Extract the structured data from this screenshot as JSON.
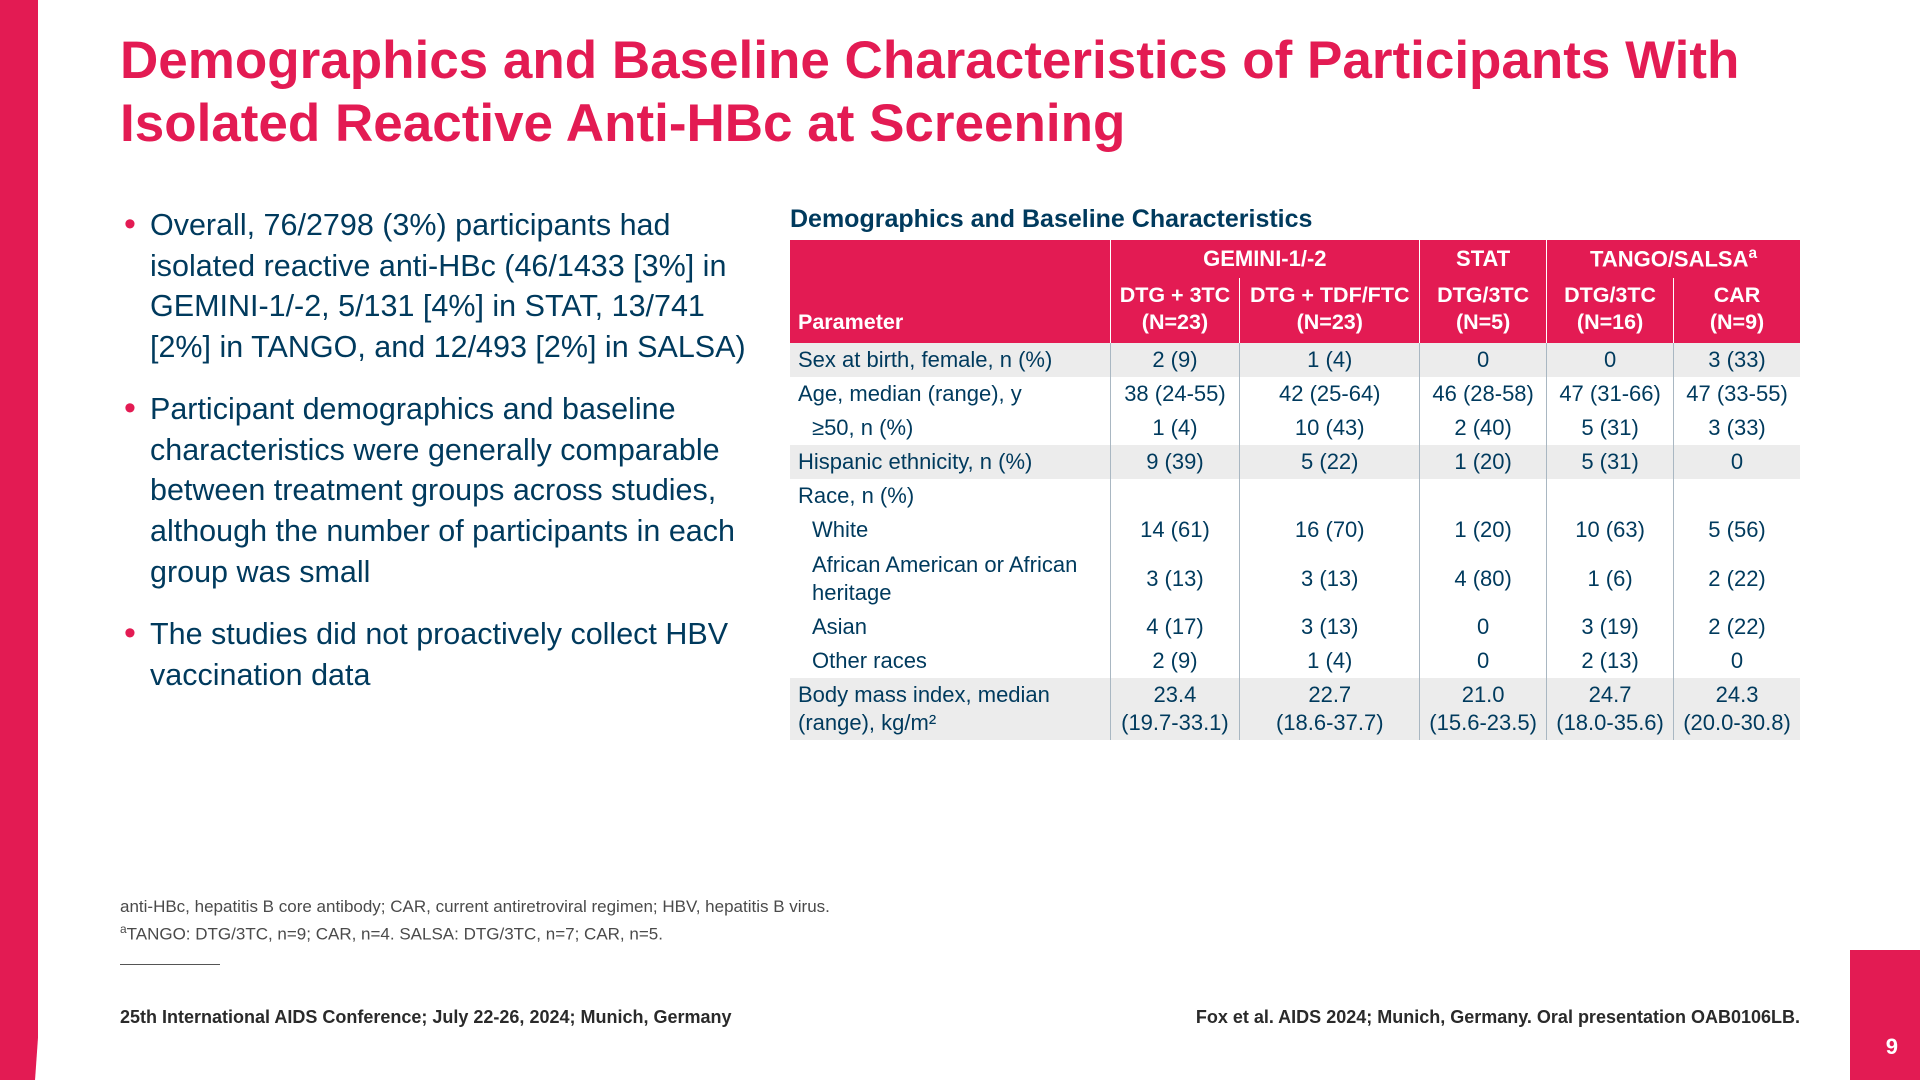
{
  "colors": {
    "accent": "#e31b53",
    "text": "#003a5d",
    "shade": "#ececec"
  },
  "title": "Demographics and Baseline Characteristics of Participants With Isolated Reactive Anti-HBc at Screening",
  "bullets": [
    "Overall, 76/2798 (3%) participants had isolated reactive anti-HBc (46/1433 [3%] in GEMINI-1/-2, 5/131 [4%] in STAT, 13/741 [2%] in TANGO, and 12/493 [2%] in SALSA)",
    "Participant demographics and baseline characteristics were generally comparable between treatment groups across studies, although the number of participants in each group was small",
    "The studies did not proactively collect HBV vaccination data"
  ],
  "table": {
    "title": "Demographics and Baseline Characteristics",
    "group_headers": [
      {
        "label": "",
        "span": 1
      },
      {
        "label": "GEMINI-1/-2",
        "span": 2
      },
      {
        "label": "STAT",
        "span": 1
      },
      {
        "label": "TANGO/SALSAa",
        "span": 2,
        "sup": "a",
        "base": "TANGO/SALSA"
      }
    ],
    "col_headers": [
      "Parameter",
      "DTG + 3TC\n(N=23)",
      "DTG + TDF/FTC\n(N=23)",
      "DTG/3TC\n(N=5)",
      "DTG/3TC\n(N=16)",
      "CAR\n(N=9)"
    ],
    "rows": [
      {
        "shade": true,
        "cells": [
          "Sex at birth, female, n (%)",
          "2 (9)",
          "1 (4)",
          "0",
          "0",
          "3 (33)"
        ]
      },
      {
        "shade": false,
        "cells": [
          "Age, median (range), y",
          "38 (24-55)",
          "42 (25-64)",
          "46 (28-58)",
          "47 (31-66)",
          "47 (33-55)"
        ]
      },
      {
        "shade": false,
        "indent": true,
        "cells": [
          "≥50, n (%)",
          "1 (4)",
          "10 (43)",
          "2 (40)",
          "5 (31)",
          "3 (33)"
        ]
      },
      {
        "shade": true,
        "cells": [
          "Hispanic ethnicity, n (%)",
          "9 (39)",
          "5 (22)",
          "1 (20)",
          "5 (31)",
          "0"
        ]
      },
      {
        "shade": false,
        "cells": [
          "Race, n (%)",
          "",
          "",
          "",
          "",
          ""
        ]
      },
      {
        "shade": false,
        "indent": true,
        "cells": [
          "White",
          "14 (61)",
          "16 (70)",
          "1 (20)",
          "10 (63)",
          "5 (56)"
        ]
      },
      {
        "shade": false,
        "indent": true,
        "cells": [
          "African American or African heritage",
          "3 (13)",
          "3 (13)",
          "4 (80)",
          "1 (6)",
          "2 (22)"
        ]
      },
      {
        "shade": false,
        "indent": true,
        "cells": [
          "Asian",
          "4 (17)",
          "3 (13)",
          "0",
          "3 (19)",
          "2 (22)"
        ]
      },
      {
        "shade": false,
        "indent": true,
        "cells": [
          "Other races",
          "2 (9)",
          "1 (4)",
          "0",
          "2 (13)",
          "0"
        ]
      },
      {
        "shade": true,
        "cells": [
          "Body mass index, median (range), kg/m²",
          "23.4\n(19.7-33.1)",
          "22.7\n(18.6-37.7)",
          "21.0\n(15.6-23.5)",
          "24.7\n(18.0-35.6)",
          "24.3\n(20.0-30.8)"
        ]
      }
    ]
  },
  "footnotes": [
    "anti-HBc, hepatitis B core antibody; CAR, current antiretroviral regimen; HBV, hepatitis B virus.",
    "aTANGO: DTG/3TC, n=9; CAR, n=4. SALSA: DTG/3TC, n=7; CAR, n=5."
  ],
  "footer_left": "25th International AIDS Conference; July 22-26, 2024; Munich, Germany",
  "footer_right": "Fox et al. AIDS 2024; Munich, Germany. Oral presentation OAB0106LB.",
  "page_number": "9"
}
